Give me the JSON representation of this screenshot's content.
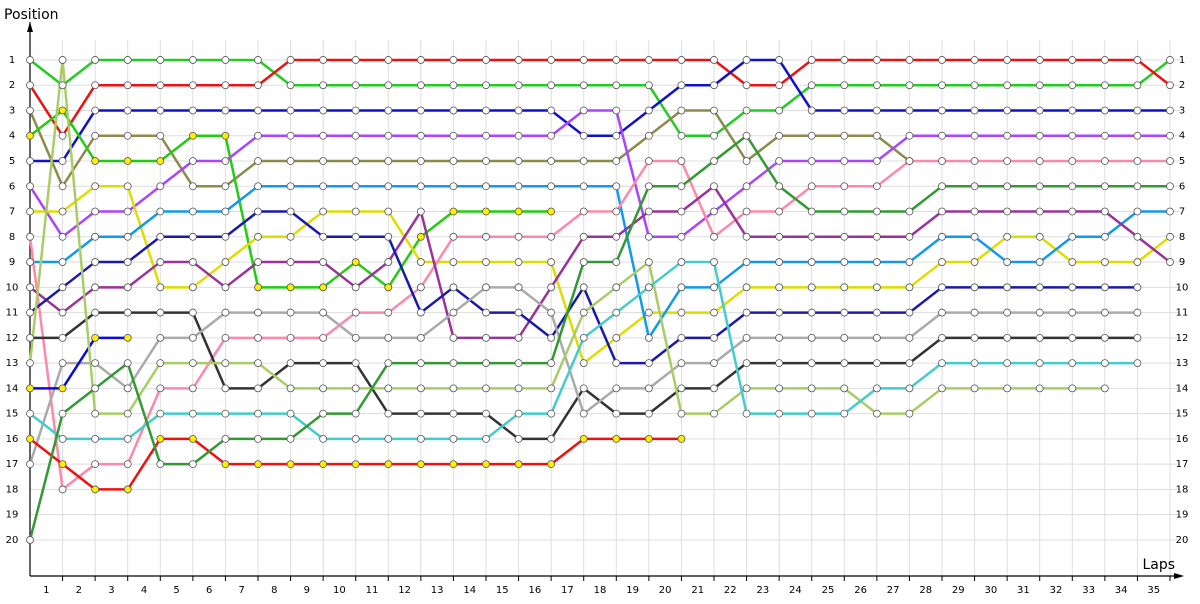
{
  "chart_data": {
    "type": "line",
    "y_label": "Position",
    "x_label": "Laps",
    "x": [
      0,
      1,
      2,
      3,
      4,
      5,
      6,
      7,
      8,
      9,
      10,
      11,
      12,
      13,
      14,
      15,
      16,
      17,
      18,
      19,
      20,
      21,
      22,
      23,
      24,
      25,
      26,
      27,
      28,
      29,
      30,
      31,
      32,
      33,
      34,
      35
    ],
    "xlim": [
      0,
      35
    ],
    "ylim": [
      21,
      0
    ],
    "xticks": [
      1,
      2,
      3,
      4,
      5,
      6,
      7,
      8,
      9,
      10,
      11,
      12,
      13,
      14,
      15,
      16,
      17,
      18,
      19,
      20,
      21,
      22,
      23,
      24,
      25,
      26,
      27,
      28,
      29,
      30,
      31,
      32,
      33,
      34,
      35
    ],
    "yticks": [
      1,
      2,
      3,
      4,
      5,
      6,
      7,
      8,
      9,
      10,
      11,
      12,
      13,
      14,
      15,
      16,
      17,
      18,
      19,
      20
    ],
    "grid": true,
    "series": [
      {
        "color": "#22cc22",
        "marker_color": "#ffffff",
        "values": [
          1,
          2,
          1,
          1,
          1,
          1,
          1,
          1,
          2,
          2,
          2,
          2,
          2,
          2,
          2,
          2,
          2,
          2,
          2,
          2,
          4,
          4,
          3,
          3,
          2,
          2,
          2,
          2,
          2,
          2,
          2,
          2,
          2,
          2,
          2,
          1
        ]
      },
      {
        "color": "#ee1111",
        "marker_color": "#ffffff",
        "values": [
          2,
          4,
          2,
          2,
          2,
          2,
          2,
          2,
          1,
          1,
          1,
          1,
          1,
          1,
          1,
          1,
          1,
          1,
          1,
          1,
          1,
          1,
          2,
          2,
          1,
          1,
          1,
          1,
          1,
          1,
          1,
          1,
          1,
          1,
          1,
          2
        ]
      },
      {
        "color": "#1111cc",
        "marker_color": "#ffffff",
        "values": [
          5,
          5,
          3,
          3,
          3,
          3,
          3,
          3,
          3,
          3,
          3,
          3,
          3,
          3,
          3,
          3,
          3,
          4,
          4,
          3,
          2,
          2,
          1,
          1,
          3,
          3,
          3,
          3,
          3,
          3,
          3,
          3,
          3,
          3,
          3,
          3
        ]
      },
      {
        "color": "#8b8b4b",
        "marker_color": "#ffffff",
        "values": [
          3,
          6,
          4,
          4,
          4,
          6,
          6,
          5,
          5,
          5,
          5,
          5,
          5,
          5,
          5,
          5,
          5,
          5,
          5,
          4,
          3,
          3,
          5,
          4,
          4,
          4,
          4,
          5,
          null,
          null,
          null,
          null,
          null,
          null,
          null,
          null
        ]
      },
      {
        "color": "#22cc11",
        "marker_color": "#ffee00",
        "values": [
          4,
          3,
          5,
          5,
          5,
          4,
          4,
          10,
          10,
          10,
          9,
          10,
          8,
          7,
          7,
          7,
          7,
          null,
          null,
          null,
          null,
          null,
          null,
          null,
          null,
          null,
          null,
          null,
          null,
          null,
          null,
          null,
          null,
          null,
          null,
          null
        ]
      },
      {
        "color": "#aa44ff",
        "marker_color": "#ffffff",
        "values": [
          6,
          8,
          7,
          7,
          6,
          5,
          5,
          4,
          4,
          4,
          4,
          4,
          4,
          4,
          4,
          4,
          4,
          3,
          3,
          8,
          8,
          7,
          6,
          5,
          5,
          5,
          5,
          4,
          4,
          4,
          4,
          4,
          4,
          4,
          4,
          4
        ]
      },
      {
        "color": "#dddd00",
        "marker_color": "#ffffff",
        "values": [
          7,
          7,
          6,
          6,
          10,
          10,
          9,
          8,
          8,
          7,
          7,
          7,
          9,
          9,
          9,
          9,
          9,
          13,
          12,
          11,
          11,
          11,
          10,
          10,
          10,
          10,
          10,
          10,
          9,
          9,
          8,
          8,
          9,
          9,
          9,
          8
        ]
      },
      {
        "color": "#1199ee",
        "marker_color": "#ffffff",
        "values": [
          9,
          9,
          8,
          8,
          7,
          7,
          7,
          6,
          6,
          6,
          6,
          6,
          6,
          6,
          6,
          6,
          6,
          6,
          6,
          12,
          10,
          10,
          9,
          9,
          9,
          9,
          9,
          9,
          8,
          8,
          9,
          9,
          8,
          8,
          7,
          7
        ]
      },
      {
        "color": "#ff88aa",
        "marker_color": "#ffffff",
        "values": [
          8,
          18,
          17,
          17,
          14,
          14,
          12,
          12,
          12,
          12,
          11,
          11,
          10,
          8,
          8,
          8,
          8,
          7,
          7,
          5,
          5,
          8,
          7,
          7,
          6,
          6,
          6,
          5,
          5,
          5,
          5,
          5,
          5,
          5,
          5,
          5
        ]
      },
      {
        "color": "#993399",
        "marker_color": "#ffffff",
        "values": [
          10,
          11,
          10,
          10,
          9,
          9,
          10,
          9,
          9,
          9,
          10,
          9,
          7,
          12,
          12,
          12,
          10,
          8,
          8,
          7,
          7,
          6,
          8,
          8,
          8,
          8,
          8,
          8,
          7,
          7,
          7,
          7,
          7,
          7,
          8,
          9
        ]
      },
      {
        "color": "#1a1aaa",
        "marker_color": "#ffffff",
        "values": [
          11,
          10,
          9,
          9,
          8,
          8,
          8,
          7,
          7,
          8,
          8,
          8,
          11,
          10,
          11,
          11,
          12,
          10,
          13,
          13,
          12,
          12,
          11,
          11,
          11,
          11,
          11,
          11,
          10,
          10,
          10,
          10,
          10,
          10,
          10,
          null
        ]
      },
      {
        "color": "#333333",
        "marker_color": "#ffffff",
        "values": [
          12,
          12,
          11,
          11,
          11,
          11,
          14,
          14,
          13,
          13,
          13,
          15,
          15,
          15,
          15,
          16,
          16,
          14,
          15,
          15,
          14,
          14,
          13,
          13,
          13,
          13,
          13,
          13,
          12,
          12,
          12,
          12,
          12,
          12,
          12,
          null
        ]
      },
      {
        "color": "#aaaaaa",
        "marker_color": "#ffffff",
        "values": [
          17,
          13,
          13,
          14,
          12,
          12,
          11,
          11,
          11,
          11,
          12,
          12,
          12,
          11,
          10,
          10,
          11,
          15,
          14,
          14,
          13,
          13,
          12,
          12,
          12,
          12,
          12,
          12,
          11,
          11,
          11,
          11,
          11,
          11,
          11,
          null
        ]
      },
      {
        "color": "#0a0add",
        "marker_color": "#ffee00",
        "values": [
          14,
          14,
          12,
          12,
          null,
          null,
          null,
          null,
          null,
          null,
          null,
          null,
          null,
          null,
          null,
          null,
          null,
          null,
          null,
          null,
          null,
          null,
          null,
          null,
          null,
          null,
          null,
          null,
          null,
          null,
          null,
          null,
          null,
          null,
          null,
          null
        ]
      },
      {
        "color": "#aacc66",
        "marker_color": "#ffffff",
        "values": [
          13,
          1,
          15,
          15,
          13,
          13,
          13,
          13,
          14,
          14,
          14,
          14,
          14,
          14,
          14,
          14,
          14,
          11,
          10,
          9,
          15,
          15,
          14,
          14,
          14,
          14,
          15,
          15,
          14,
          14,
          14,
          14,
          14,
          14,
          null,
          null
        ]
      },
      {
        "color": "#44cccc",
        "marker_color": "#ffffff",
        "values": [
          15,
          16,
          16,
          16,
          15,
          15,
          15,
          15,
          15,
          16,
          16,
          16,
          16,
          16,
          16,
          15,
          15,
          12,
          11,
          10,
          9,
          9,
          15,
          15,
          15,
          15,
          14,
          14,
          13,
          13,
          13,
          13,
          13,
          13,
          13,
          null
        ]
      },
      {
        "color": "#ee1111",
        "marker_color": "#ffee00",
        "values": [
          16,
          17,
          18,
          18,
          16,
          16,
          17,
          17,
          17,
          17,
          17,
          17,
          17,
          17,
          17,
          17,
          17,
          16,
          16,
          16,
          16,
          null,
          null,
          null,
          null,
          null,
          null,
          null,
          null,
          null,
          null,
          null,
          null,
          null,
          null,
          null
        ]
      },
      {
        "color": "#339933",
        "marker_color": "#ffffff",
        "values": [
          20,
          15,
          14,
          13,
          17,
          17,
          16,
          16,
          16,
          15,
          15,
          13,
          13,
          13,
          13,
          13,
          13,
          9,
          9,
          6,
          6,
          5,
          4,
          6,
          7,
          7,
          7,
          7,
          6,
          6,
          6,
          6,
          6,
          6,
          6,
          6
        ]
      }
    ]
  }
}
